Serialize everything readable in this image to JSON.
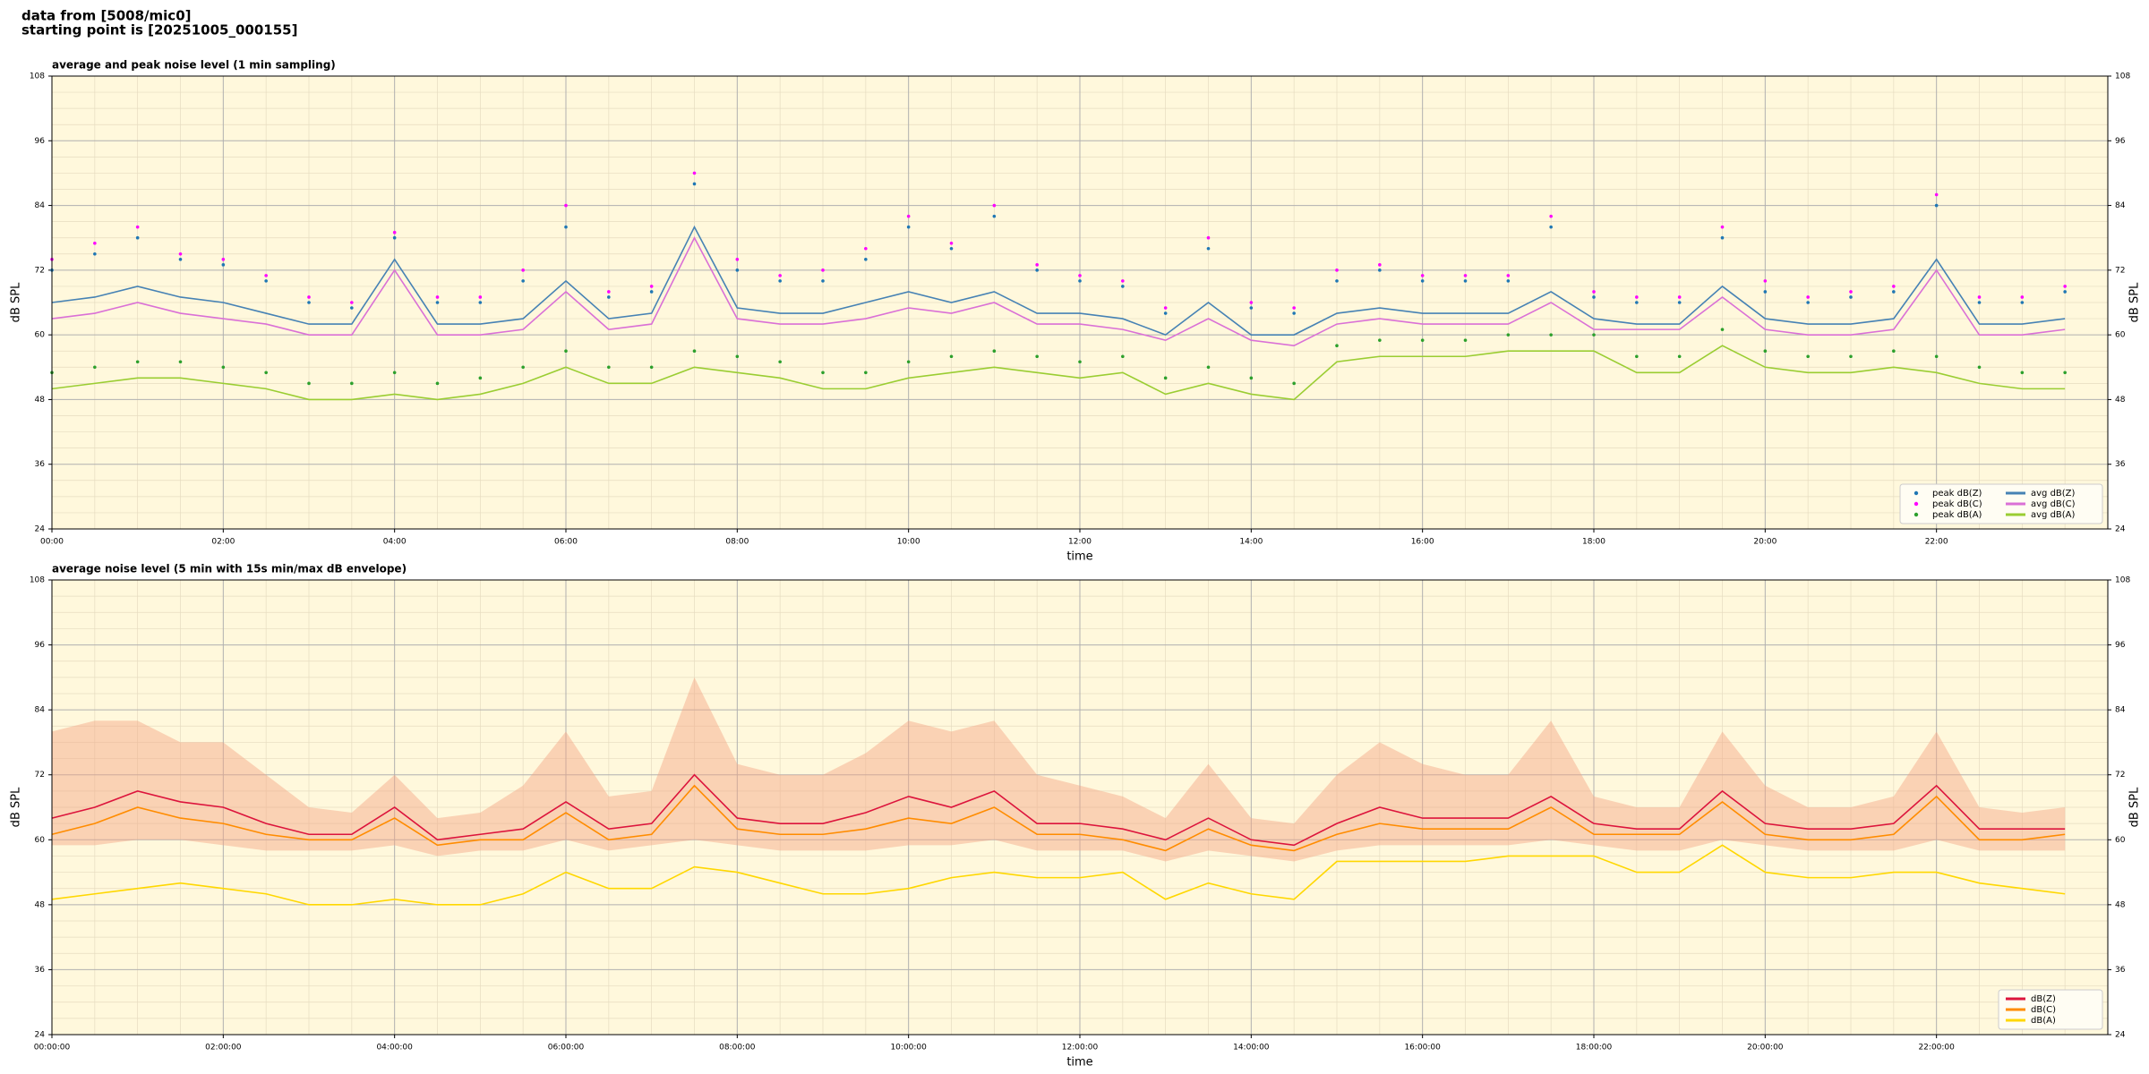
{
  "header": {
    "lines": [
      "data from [5008/mic0]",
      "starting point is [20251005_000155]"
    ]
  },
  "chart_data": [
    {
      "type": "line",
      "title": "average and peak noise level (1 min sampling)",
      "xlabel": "time",
      "ylabel": "dB SPL",
      "xlim": [
        0,
        24
      ],
      "ylim": [
        24,
        108
      ],
      "yticks": [
        24,
        36,
        48,
        60,
        72,
        84,
        96,
        108
      ],
      "xticks": [
        {
          "value": 0,
          "label": "00:00"
        },
        {
          "value": 2,
          "label": "02:00"
        },
        {
          "value": 4,
          "label": "04:00"
        },
        {
          "value": 6,
          "label": "06:00"
        },
        {
          "value": 8,
          "label": "08:00"
        },
        {
          "value": 10,
          "label": "10:00"
        },
        {
          "value": 12,
          "label": "12:00"
        },
        {
          "value": 14,
          "label": "14:00"
        },
        {
          "value": 16,
          "label": "16:00"
        },
        {
          "value": 18,
          "label": "18:00"
        },
        {
          "value": 20,
          "label": "20:00"
        },
        {
          "value": 22,
          "label": "22:00"
        }
      ],
      "grid": true,
      "minor_grid": true,
      "legend": "lower right",
      "legend_columns": 2,
      "background": "#fff8dc",
      "x": [
        0,
        0.5,
        1,
        1.5,
        2,
        2.5,
        3,
        3.5,
        4,
        4.5,
        5,
        5.5,
        6,
        6.5,
        7,
        7.5,
        8,
        8.5,
        9,
        9.5,
        10,
        10.5,
        11,
        11.5,
        12,
        12.5,
        13,
        13.5,
        14,
        14.5,
        15,
        15.5,
        16,
        16.5,
        17,
        17.5,
        18,
        18.5,
        19,
        19.5,
        20,
        20.5,
        21,
        21.5,
        22,
        22.5,
        23,
        23.5
      ],
      "series": [
        {
          "name": "peak dB(Z)",
          "kind": "scatter",
          "color": "#1f77b4",
          "values": [
            72,
            75,
            78,
            74,
            73,
            70,
            66,
            65,
            78,
            66,
            66,
            70,
            80,
            67,
            68,
            88,
            72,
            70,
            70,
            74,
            80,
            76,
            82,
            72,
            70,
            69,
            64,
            76,
            65,
            64,
            70,
            72,
            70,
            70,
            70,
            80,
            67,
            66,
            66,
            78,
            68,
            66,
            67,
            68,
            84,
            66,
            66,
            68
          ]
        },
        {
          "name": "peak dB(C)",
          "kind": "scatter",
          "color": "#ff00ff",
          "values": [
            74,
            77,
            80,
            75,
            74,
            71,
            67,
            66,
            79,
            67,
            67,
            72,
            84,
            68,
            69,
            90,
            74,
            71,
            72,
            76,
            82,
            77,
            84,
            73,
            71,
            70,
            65,
            78,
            66,
            65,
            72,
            73,
            71,
            71,
            71,
            82,
            68,
            67,
            67,
            80,
            70,
            67,
            68,
            69,
            86,
            67,
            67,
            69
          ]
        },
        {
          "name": "peak dB(A)",
          "kind": "scatter",
          "color": "#2ca02c",
          "values": [
            53,
            54,
            55,
            55,
            54,
            53,
            51,
            51,
            53,
            51,
            52,
            54,
            57,
            54,
            54,
            57,
            56,
            55,
            53,
            53,
            55,
            56,
            57,
            56,
            55,
            56,
            52,
            54,
            52,
            51,
            58,
            59,
            59,
            59,
            60,
            60,
            60,
            56,
            56,
            61,
            57,
            56,
            56,
            57,
            56,
            54,
            53,
            53
          ]
        },
        {
          "name": "avg dB(Z)",
          "kind": "line",
          "color": "#4682b4",
          "values": [
            66,
            67,
            69,
            67,
            66,
            64,
            62,
            62,
            74,
            62,
            62,
            63,
            70,
            63,
            64,
            80,
            65,
            64,
            64,
            66,
            68,
            66,
            68,
            64,
            64,
            63,
            60,
            66,
            60,
            60,
            64,
            65,
            64,
            64,
            64,
            68,
            63,
            62,
            62,
            69,
            63,
            62,
            62,
            63,
            74,
            62,
            62,
            63
          ]
        },
        {
          "name": "avg dB(C)",
          "kind": "line",
          "color": "#da70d6",
          "values": [
            63,
            64,
            66,
            64,
            63,
            62,
            60,
            60,
            72,
            60,
            60,
            61,
            68,
            61,
            62,
            78,
            63,
            62,
            62,
            63,
            65,
            64,
            66,
            62,
            62,
            61,
            59,
            63,
            59,
            58,
            62,
            63,
            62,
            62,
            62,
            66,
            61,
            61,
            61,
            67,
            61,
            60,
            60,
            61,
            72,
            60,
            60,
            61
          ]
        },
        {
          "name": "avg dB(A)",
          "kind": "line",
          "color": "#9acd32",
          "values": [
            50,
            51,
            52,
            52,
            51,
            50,
            48,
            48,
            49,
            48,
            49,
            51,
            54,
            51,
            51,
            54,
            53,
            52,
            50,
            50,
            52,
            53,
            54,
            53,
            52,
            53,
            49,
            51,
            49,
            48,
            55,
            56,
            56,
            56,
            57,
            57,
            57,
            53,
            53,
            58,
            54,
            53,
            53,
            54,
            53,
            51,
            50,
            50
          ]
        }
      ]
    },
    {
      "type": "line",
      "title": "average noise level (5 min with 15s min/max dB envelope)",
      "xlabel": "time",
      "ylabel": "dB SPL",
      "xlim": [
        0,
        24
      ],
      "ylim": [
        24,
        108
      ],
      "yticks": [
        24,
        36,
        48,
        60,
        72,
        84,
        96,
        108
      ],
      "xticks": [
        {
          "value": 0,
          "label": "00:00:00"
        },
        {
          "value": 2,
          "label": "02:00:00"
        },
        {
          "value": 4,
          "label": "04:00:00"
        },
        {
          "value": 6,
          "label": "06:00:00"
        },
        {
          "value": 8,
          "label": "08:00:00"
        },
        {
          "value": 10,
          "label": "10:00:00"
        },
        {
          "value": 12,
          "label": "12:00:00"
        },
        {
          "value": 14,
          "label": "14:00:00"
        },
        {
          "value": 16,
          "label": "16:00:00"
        },
        {
          "value": 18,
          "label": "18:00:00"
        },
        {
          "value": 20,
          "label": "20:00:00"
        },
        {
          "value": 22,
          "label": "22:00:00"
        }
      ],
      "grid": true,
      "minor_grid": true,
      "legend": "lower right",
      "legend_columns": 1,
      "background": "#fff8dc",
      "x": [
        0,
        0.5,
        1,
        1.5,
        2,
        2.5,
        3,
        3.5,
        4,
        4.5,
        5,
        5.5,
        6,
        6.5,
        7,
        7.5,
        8,
        8.5,
        9,
        9.5,
        10,
        10.5,
        11,
        11.5,
        12,
        12.5,
        13,
        13.5,
        14,
        14.5,
        15,
        15.5,
        16,
        16.5,
        17,
        17.5,
        18,
        18.5,
        19,
        19.5,
        20,
        20.5,
        21,
        21.5,
        22,
        22.5,
        23,
        23.5
      ],
      "envelope": {
        "color": "#f4a582",
        "max": [
          80,
          82,
          82,
          78,
          78,
          72,
          66,
          65,
          72,
          64,
          65,
          70,
          80,
          68,
          69,
          90,
          74,
          72,
          72,
          76,
          82,
          80,
          82,
          72,
          70,
          68,
          64,
          74,
          64,
          63,
          72,
          78,
          74,
          72,
          72,
          82,
          68,
          66,
          66,
          80,
          70,
          66,
          66,
          68,
          80,
          66,
          65,
          66
        ],
        "min": [
          59,
          59,
          60,
          60,
          59,
          58,
          58,
          58,
          59,
          57,
          58,
          58,
          60,
          58,
          59,
          60,
          59,
          58,
          58,
          58,
          59,
          59,
          60,
          58,
          58,
          58,
          56,
          58,
          57,
          56,
          58,
          59,
          59,
          59,
          59,
          60,
          59,
          58,
          58,
          60,
          59,
          58,
          58,
          58,
          60,
          58,
          58,
          58
        ]
      },
      "series": [
        {
          "name": "dB(Z)",
          "kind": "line",
          "color": "#dc143c",
          "values": [
            64,
            66,
            69,
            67,
            66,
            63,
            61,
            61,
            66,
            60,
            61,
            62,
            67,
            62,
            63,
            72,
            64,
            63,
            63,
            65,
            68,
            66,
            69,
            63,
            63,
            62,
            60,
            64,
            60,
            59,
            63,
            66,
            64,
            64,
            64,
            68,
            63,
            62,
            62,
            69,
            63,
            62,
            62,
            63,
            70,
            62,
            62,
            62
          ]
        },
        {
          "name": "dB(C)",
          "kind": "line",
          "color": "#ff8c00",
          "values": [
            61,
            63,
            66,
            64,
            63,
            61,
            60,
            60,
            64,
            59,
            60,
            60,
            65,
            60,
            61,
            70,
            62,
            61,
            61,
            62,
            64,
            63,
            66,
            61,
            61,
            60,
            58,
            62,
            59,
            58,
            61,
            63,
            62,
            62,
            62,
            66,
            61,
            61,
            61,
            67,
            61,
            60,
            60,
            61,
            68,
            60,
            60,
            61
          ]
        },
        {
          "name": "dB(A)",
          "kind": "line",
          "color": "#ffd700",
          "values": [
            49,
            50,
            51,
            52,
            51,
            50,
            48,
            48,
            49,
            48,
            48,
            50,
            54,
            51,
            51,
            55,
            54,
            52,
            50,
            50,
            51,
            53,
            54,
            53,
            53,
            54,
            49,
            52,
            50,
            49,
            56,
            56,
            56,
            56,
            57,
            57,
            57,
            54,
            54,
            59,
            54,
            53,
            53,
            54,
            54,
            52,
            51,
            50
          ]
        }
      ]
    }
  ]
}
